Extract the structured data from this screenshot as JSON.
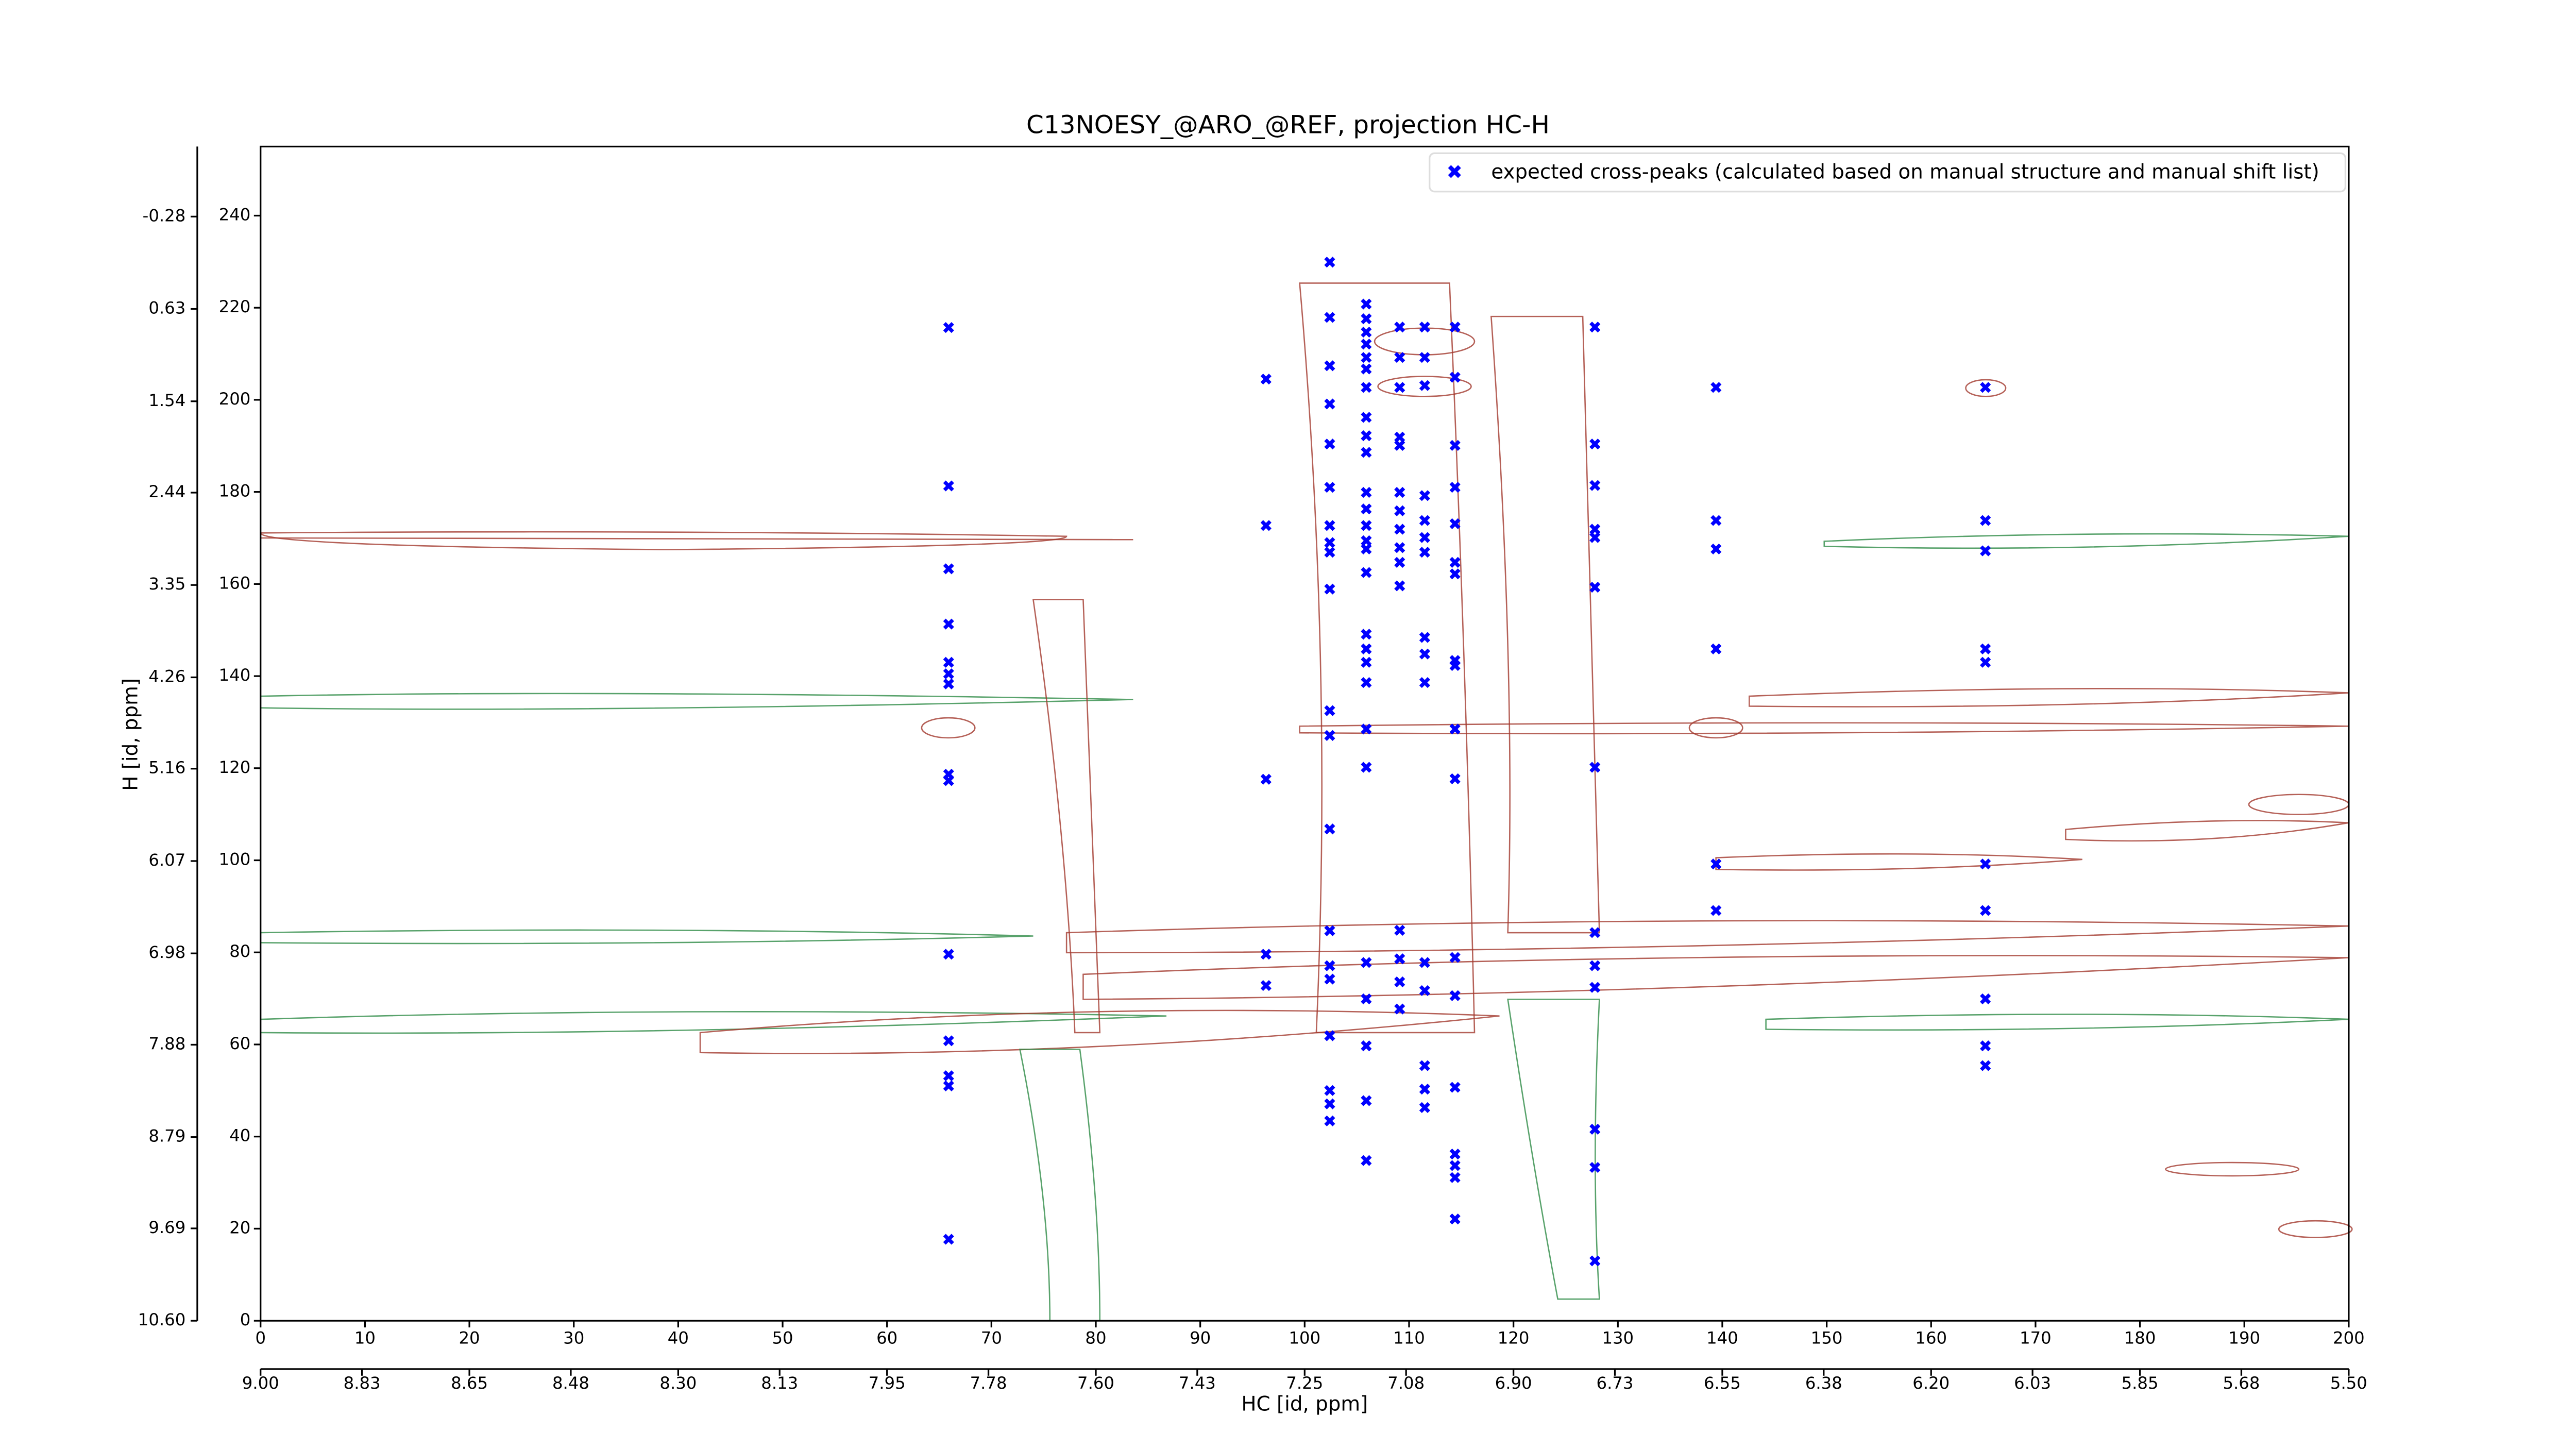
{
  "chart_data": {
    "type": "scatter",
    "title": "C13NOESY_@ARO_@REF, projection HC-H",
    "xlabel": "HC [id, ppm]",
    "ylabel": "H [id, ppm]",
    "xlim": [
      0,
      200
    ],
    "xticks": [
      0,
      10,
      20,
      30,
      40,
      50,
      60,
      70,
      80,
      90,
      100,
      110,
      120,
      130,
      140,
      150,
      160,
      170,
      180,
      190,
      200
    ],
    "x2lim": [
      9.0,
      5.5
    ],
    "x2ticks": [
      {
        "value": 9.0,
        "label": "9.00"
      },
      8.83,
      8.65,
      8.48,
      {
        "value": 8.3,
        "label": "8.30"
      },
      8.13,
      7.95,
      7.78,
      {
        "value": 7.6,
        "label": "7.60"
      },
      7.43,
      7.25,
      7.08,
      {
        "value": 6.9,
        "label": "6.90"
      },
      6.73,
      6.55,
      6.38,
      {
        "value": 6.2,
        "label": "6.20"
      },
      6.03,
      5.85,
      5.68,
      {
        "value": 5.5,
        "label": "5.50"
      }
    ],
    "ylim": [
      0,
      255
    ],
    "yticks": [
      0,
      20,
      40,
      60,
      80,
      100,
      120,
      140,
      160,
      180,
      200,
      220,
      240
    ],
    "y2lim": [
      10.6,
      -0.97
    ],
    "y2ticks": [
      {
        "value": 10.6,
        "label": "10.60"
      },
      9.69,
      8.79,
      7.88,
      6.98,
      6.07,
      5.16,
      4.26,
      3.35,
      2.44,
      1.54,
      0.63,
      -0.28
    ],
    "legend": "upper right",
    "series": [
      {
        "name": "expected cross-peaks (calculated based on manual structure and manual shift list)",
        "color": "#0000ff",
        "x": [
          65.9,
          65.9,
          65.9,
          65.9,
          65.9,
          65.9,
          65.9,
          65.9,
          65.9,
          65.9,
          65.9,
          65.9,
          65.9,
          65.9,
          96.3,
          96.3,
          96.3,
          96.3,
          96.3,
          102.4,
          102.4,
          102.4,
          102.4,
          102.4,
          102.4,
          102.4,
          102.4,
          102.4,
          102.4,
          102.4,
          102.4,
          102.4,
          102.4,
          102.4,
          102.4,
          102.4,
          102.4,
          102.4,
          102.4,
          105.9,
          105.9,
          105.9,
          105.9,
          105.9,
          105.9,
          105.9,
          105.9,
          105.9,
          105.9,
          105.9,
          105.9,
          105.9,
          105.9,
          105.9,
          105.9,
          105.9,
          105.9,
          105.9,
          105.9,
          105.9,
          105.9,
          105.9,
          105.9,
          105.9,
          105.9,
          105.9,
          109.1,
          109.1,
          109.1,
          109.1,
          109.1,
          109.1,
          109.1,
          109.1,
          109.1,
          109.1,
          109.1,
          109.1,
          109.1,
          109.1,
          109.1,
          111.5,
          111.5,
          111.5,
          111.5,
          111.5,
          111.5,
          111.5,
          111.5,
          111.5,
          111.5,
          111.5,
          111.5,
          111.5,
          111.5,
          111.5,
          114.4,
          114.4,
          114.4,
          114.4,
          114.4,
          114.4,
          114.4,
          114.4,
          114.4,
          114.4,
          114.4,
          114.4,
          114.4,
          114.4,
          114.4,
          114.4,
          114.4,
          114.4,
          127.8,
          127.8,
          127.8,
          127.8,
          127.8,
          127.8,
          127.8,
          127.8,
          127.8,
          127.8,
          127.8,
          127.8,
          127.8,
          139.4,
          139.4,
          139.4,
          139.4,
          139.4,
          139.4,
          165.2,
          165.2,
          165.2,
          165.2,
          165.2,
          165.2,
          165.2,
          165.2,
          165.2,
          165.2
        ],
        "values": [
          215.7,
          181.3,
          163.3,
          151.3,
          143,
          140.5,
          138.3,
          118.7,
          117.3,
          79.6,
          60.8,
          53.2,
          51,
          17.7,
          204.5,
          172.7,
          117.6,
          79.6,
          72.8,
          229.9,
          217.9,
          207.4,
          199.1,
          190.4,
          181,
          172.7,
          169,
          166.9,
          158.9,
          132.5,
          127.1,
          106.8,
          84.7,
          77.1,
          74.2,
          61.9,
          50,
          47.1,
          43.4,
          220.8,
          217.6,
          214.7,
          212.1,
          209.2,
          206.7,
          202.7,
          196.2,
          192.2,
          188.6,
          179.9,
          176.3,
          172.7,
          169.4,
          167.6,
          162.5,
          149.1,
          145.9,
          143,
          138.6,
          128.5,
          120.2,
          77.8,
          69.9,
          59.7,
          47.8,
          34.8,
          215.8,
          209.2,
          202.7,
          191.9,
          190.1,
          179.9,
          175.9,
          171.9,
          167.9,
          164.7,
          159.6,
          84.8,
          78.6,
          73.6,
          67.7,
          215.8,
          209.2,
          203.1,
          179.2,
          173.8,
          170.1,
          166.9,
          148.4,
          144.8,
          138.6,
          77.8,
          71.7,
          55.4,
          50.3,
          46.3,
          215.8,
          204.9,
          190.1,
          181,
          173.1,
          164.7,
          162.2,
          143.4,
          142.3,
          128.5,
          117.7,
          78.9,
          70.6,
          50.7,
          36.2,
          33.7,
          31.1,
          22.1,
          215.8,
          190.4,
          181.4,
          171.9,
          170.1,
          159.3,
          120.2,
          84.3,
          77.1,
          72.4,
          41.6,
          33.3,
          13,
          202.7,
          173.8,
          167.6,
          145.9,
          99.2,
          89.1,
          202.7,
          173.8,
          167.2,
          145.9,
          143,
          99.2,
          89.1,
          69.9,
          59.7,
          55.4
        ]
      }
    ]
  }
}
